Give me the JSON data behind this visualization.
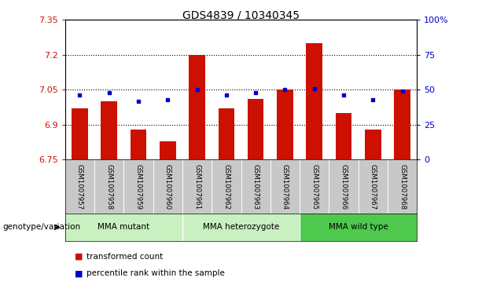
{
  "title": "GDS4839 / 10340345",
  "samples": [
    "GSM1007957",
    "GSM1007958",
    "GSM1007959",
    "GSM1007960",
    "GSM1007961",
    "GSM1007962",
    "GSM1007963",
    "GSM1007964",
    "GSM1007965",
    "GSM1007966",
    "GSM1007967",
    "GSM1007968"
  ],
  "bar_values": [
    6.97,
    7.0,
    6.88,
    6.83,
    7.2,
    6.97,
    7.01,
    7.05,
    7.25,
    6.95,
    6.88,
    7.05
  ],
  "percentile_values": [
    46,
    48,
    42,
    43,
    50,
    46,
    48,
    50,
    51,
    46,
    43,
    49
  ],
  "ylim": [
    6.75,
    7.35
  ],
  "ylim_right": [
    0,
    100
  ],
  "yticks_left": [
    6.75,
    6.9,
    7.05,
    7.2,
    7.35
  ],
  "yticks_right": [
    0,
    25,
    50,
    75,
    100
  ],
  "ytick_labels_left": [
    "6.75",
    "6.9",
    "7.05",
    "7.2",
    "7.35"
  ],
  "ytick_labels_right": [
    "0",
    "25",
    "50",
    "75",
    "100%"
  ],
  "hlines": [
    6.9,
    7.05,
    7.2
  ],
  "bar_color": "#cc1100",
  "dot_color": "#0000cc",
  "bar_width": 0.55,
  "groups": [
    {
      "label": "MMA mutant",
      "start": 0,
      "end": 3,
      "color": "#b8f0b0"
    },
    {
      "label": "MMA heterozygote",
      "start": 4,
      "end": 7,
      "color": "#b8f0b0"
    },
    {
      "label": "MMA wild type",
      "start": 8,
      "end": 11,
      "color": "#4ec94e"
    }
  ],
  "group_boundary_after": [
    3,
    7
  ],
  "sample_bg_color": "#c8c8c8",
  "legend_bar_label": "transformed count",
  "legend_dot_label": "percentile rank within the sample",
  "genotype_label": "genotype/variation",
  "left_label_color": "#cc1100",
  "right_label_color": "#0000cc",
  "title_fontsize": 10
}
